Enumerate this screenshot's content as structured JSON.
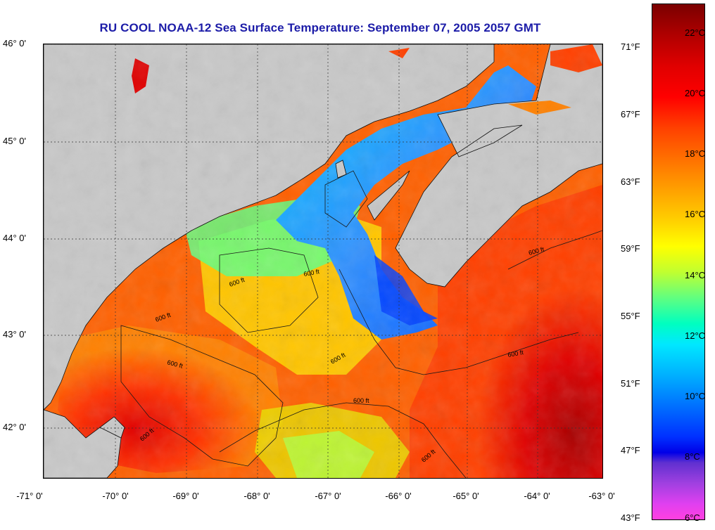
{
  "title": "RU COOL  NOAA-12  Sea Surface Temperature:  September 07, 2005 2057 GMT",
  "latitude_labels": [
    "46° 0'",
    "45° 0'",
    "44° 0'",
    "43° 0'",
    "42° 0'"
  ],
  "longitude_labels": [
    "-71° 0'",
    "-70° 0'",
    "-69° 0'",
    "-68° 0'",
    "-67° 0'",
    "-66° 0'",
    "-65° 0'",
    "-64° 0'",
    "-63° 0'"
  ],
  "colorbar": {
    "celsius_labels": [
      "22°C",
      "20°C",
      "18°C",
      "16°C",
      "14°C",
      "12°C",
      "10°C",
      "8°C",
      "6°C"
    ],
    "fahrenheit_labels": [
      "71°F",
      "67°F",
      "63°F",
      "59°F",
      "55°F",
      "51°F",
      "47°F",
      "43°F"
    ]
  },
  "contour_label": "600 ft",
  "colors": {
    "title": "#1c1ca8",
    "land": "#c8c8c8",
    "warm_water": "#ff4000",
    "cool_water": "#00b0ff"
  }
}
